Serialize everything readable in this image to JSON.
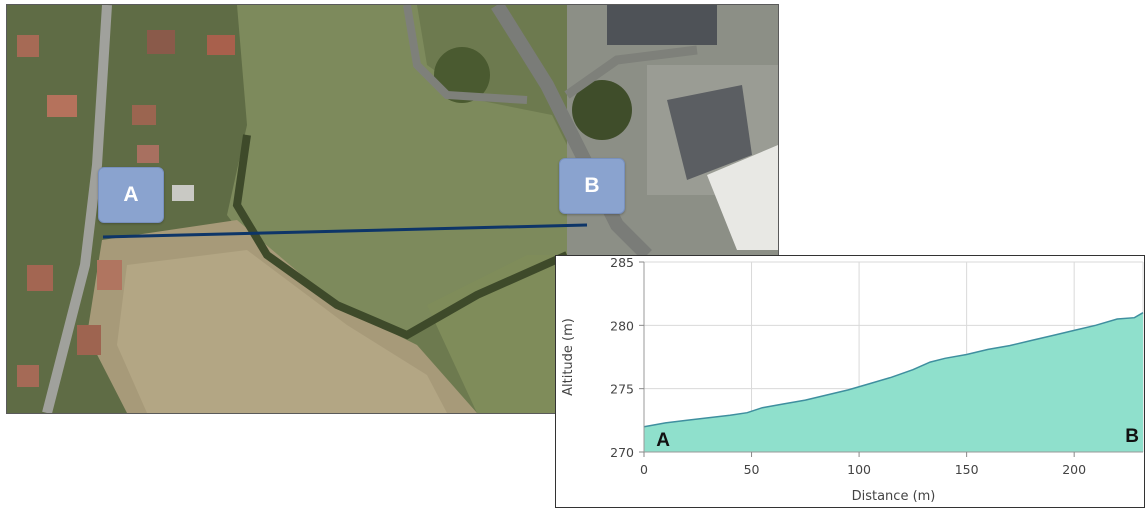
{
  "map": {
    "marker_a_label": "A",
    "marker_b_label": "B",
    "route_color": "#0d3568",
    "marker_color": "#8aa3cf"
  },
  "chart_data": {
    "type": "area",
    "title": "",
    "xlabel": "Distance (m)",
    "ylabel": "Altitude (m)",
    "xlim": [
      0,
      232
    ],
    "ylim": [
      270,
      285
    ],
    "x_ticks": [
      "0",
      "50",
      "100",
      "150",
      "200"
    ],
    "y_ticks": [
      "270",
      "275",
      "280",
      "285"
    ],
    "grid": true,
    "fill_color": "#8fe0cc",
    "line_color": "#3f8f9f",
    "series": [
      {
        "x": [
          0,
          10,
          20,
          30,
          40,
          48,
          55,
          65,
          75,
          85,
          95,
          105,
          115,
          125,
          133,
          140,
          150,
          160,
          170,
          180,
          190,
          200,
          210,
          220,
          228,
          232
        ],
        "y": [
          272.0,
          272.3,
          272.5,
          272.7,
          272.9,
          273.1,
          273.5,
          273.8,
          274.1,
          274.5,
          274.9,
          275.4,
          275.9,
          276.5,
          277.1,
          277.4,
          277.7,
          278.1,
          278.4,
          278.8,
          279.2,
          279.6,
          280.0,
          280.5,
          280.6,
          281.0
        ]
      }
    ],
    "annotations": [
      {
        "text": "A",
        "x": 2,
        "y": 271.2
      },
      {
        "text": "B",
        "x": 220,
        "y": 271.5
      }
    ]
  }
}
